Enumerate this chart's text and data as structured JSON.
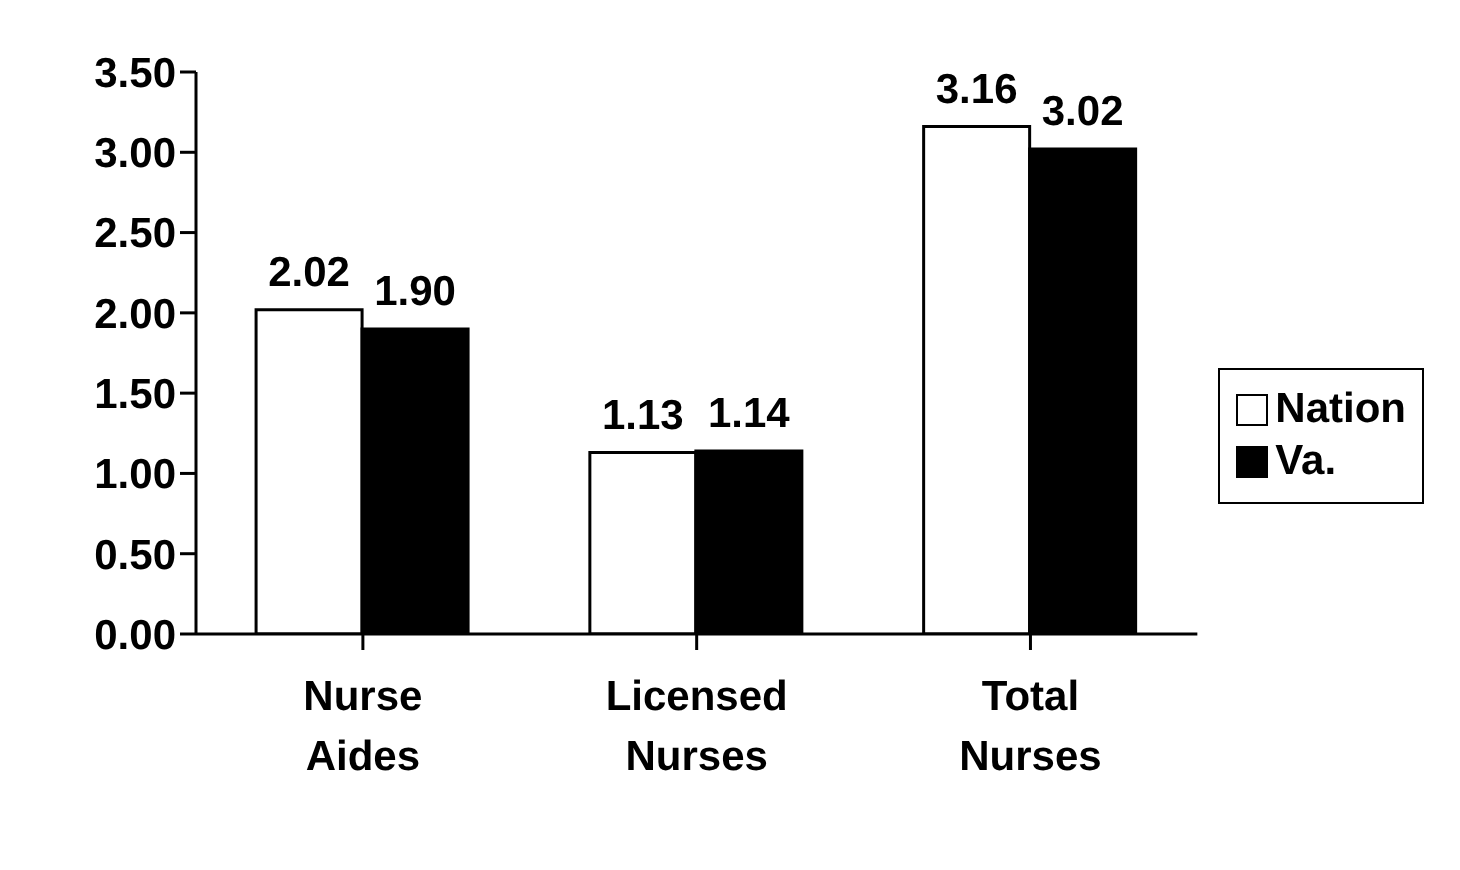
{
  "chart_data": {
    "type": "bar",
    "categories": [
      "Nurse Aides",
      "Licensed Nurses",
      "Total Nurses"
    ],
    "series": [
      {
        "name": "Nation",
        "color": "#ffffff",
        "values": [
          2.02,
          1.13,
          3.16
        ],
        "value_labels": [
          "2.02",
          "1.13",
          "3.16"
        ]
      },
      {
        "name": "Va.",
        "color": "#000000",
        "values": [
          1.9,
          1.14,
          3.02
        ],
        "value_labels": [
          "1.90",
          "1.14",
          "3.02"
        ]
      }
    ],
    "ylim": [
      0,
      3.5
    ],
    "yticks": [
      {
        "value": 0,
        "label": "0.00"
      },
      {
        "value": 0.5,
        "label": "0.50"
      },
      {
        "value": 1,
        "label": "1.00"
      },
      {
        "value": 1.5,
        "label": "1.50"
      },
      {
        "value": 2,
        "label": "2.00"
      },
      {
        "value": 2.5,
        "label": "2.50"
      },
      {
        "value": 3,
        "label": "3.00"
      },
      {
        "value": 3.5,
        "label": "3.50"
      }
    ],
    "grid": false,
    "legend": "right"
  }
}
